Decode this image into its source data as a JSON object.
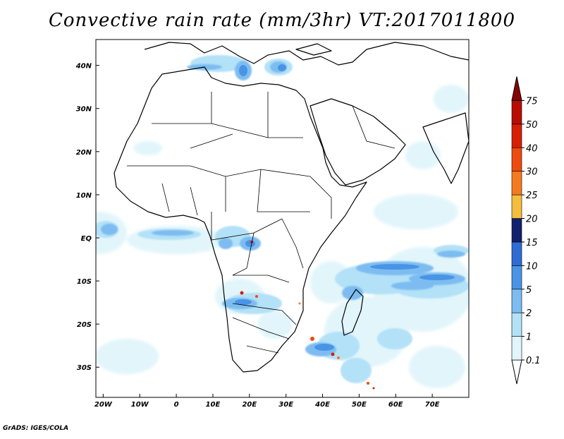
{
  "title": "Convective rain rate (mm/3hr) VT:2017011800",
  "credit": "GrADS: IGES/COLA",
  "map": {
    "lon_range": [
      -22,
      80
    ],
    "lat_range": [
      -37,
      46
    ],
    "x_ticks": [
      {
        "lon": -20,
        "label": "20W"
      },
      {
        "lon": -10,
        "label": "10W"
      },
      {
        "lon": 0,
        "label": "0"
      },
      {
        "lon": 10,
        "label": "10E"
      },
      {
        "lon": 20,
        "label": "20E"
      },
      {
        "lon": 30,
        "label": "30E"
      },
      {
        "lon": 40,
        "label": "40E"
      },
      {
        "lon": 50,
        "label": "50E"
      },
      {
        "lon": 60,
        "label": "60E"
      },
      {
        "lon": 70,
        "label": "70E"
      }
    ],
    "y_ticks": [
      {
        "lat": 40,
        "label": "40N"
      },
      {
        "lat": 30,
        "label": "30N"
      },
      {
        "lat": 20,
        "label": "20N"
      },
      {
        "lat": 10,
        "label": "10N"
      },
      {
        "lat": 0,
        "label": "EQ"
      },
      {
        "lat": -10,
        "label": "10S"
      },
      {
        "lat": -20,
        "label": "20S"
      },
      {
        "lat": -30,
        "label": "30S"
      }
    ]
  },
  "colorbar": {
    "levels": [
      {
        "label": "0.1",
        "color": "#ffffff"
      },
      {
        "label": "1",
        "color": "#e1f5fb"
      },
      {
        "label": "2",
        "color": "#b3e1f7"
      },
      {
        "label": "5",
        "color": "#7cbcf0"
      },
      {
        "label": "10",
        "color": "#4a94e6"
      },
      {
        "label": "15",
        "color": "#2f6cd4"
      },
      {
        "label": "20",
        "color": "#12206e"
      },
      {
        "label": "25",
        "color": "#f5bd3e"
      },
      {
        "label": "30",
        "color": "#f57a1f"
      },
      {
        "label": "40",
        "color": "#ee4b10"
      },
      {
        "label": "50",
        "color": "#d81e05"
      },
      {
        "label": "75",
        "color": "#b80d02"
      },
      {
        "label": "",
        "color": "#8a0000"
      }
    ]
  }
}
